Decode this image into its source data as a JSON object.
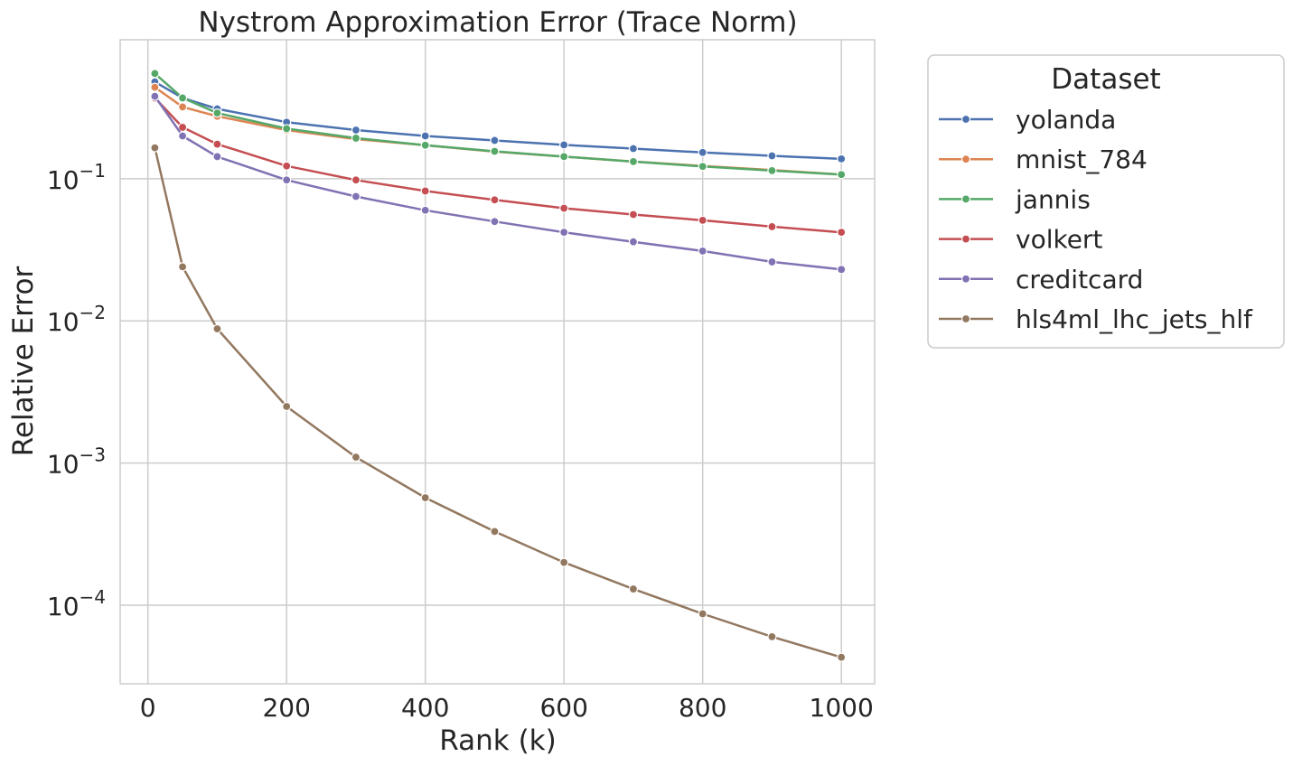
{
  "chart_data": {
    "type": "line",
    "title": "Nystrom Approximation Error (Trace Norm)",
    "xlabel": "Rank (k)",
    "ylabel": "Relative Error",
    "x_scale": "linear",
    "y_scale": "log",
    "xlim": [
      -40,
      1048
    ],
    "ylim": [
      2.8e-05,
      0.95
    ],
    "x_ticks": [
      0,
      200,
      400,
      600,
      800,
      1000
    ],
    "x_tick_labels": [
      "0",
      "200",
      "400",
      "600",
      "800",
      "1000"
    ],
    "y_ticks": [
      0.0001,
      0.001,
      0.01,
      0.1
    ],
    "y_tick_labels": [
      {
        "base": "10",
        "exp": "−4"
      },
      {
        "base": "10",
        "exp": "−3"
      },
      {
        "base": "10",
        "exp": "−2"
      },
      {
        "base": "10",
        "exp": "−1"
      }
    ],
    "grid": true,
    "legend": {
      "title": "Dataset",
      "placement": "outside-top-right"
    },
    "x": [
      10,
      50,
      100,
      200,
      300,
      400,
      500,
      600,
      700,
      800,
      900,
      1000
    ],
    "series": [
      {
        "name": "yolanda",
        "color": "#4c72b0",
        "values": [
          0.48,
          0.37,
          0.31,
          0.25,
          0.22,
          0.2,
          0.186,
          0.173,
          0.163,
          0.153,
          0.145,
          0.138
        ]
      },
      {
        "name": "mnist_784",
        "color": "#dd8452",
        "values": [
          0.44,
          0.32,
          0.275,
          0.22,
          0.19,
          0.172,
          0.155,
          0.143,
          0.132,
          0.123,
          0.115,
          0.107
        ]
      },
      {
        "name": "jannis",
        "color": "#55a868",
        "values": [
          0.55,
          0.37,
          0.29,
          0.225,
          0.193,
          0.172,
          0.156,
          0.143,
          0.132,
          0.122,
          0.114,
          0.107
        ]
      },
      {
        "name": "volkert",
        "color": "#c44e52",
        "values": [
          0.37,
          0.23,
          0.175,
          0.123,
          0.098,
          0.082,
          0.071,
          0.062,
          0.056,
          0.051,
          0.046,
          0.042
        ]
      },
      {
        "name": "creditcard",
        "color": "#8172b3",
        "values": [
          0.38,
          0.2,
          0.143,
          0.098,
          0.075,
          0.06,
          0.05,
          0.042,
          0.036,
          0.031,
          0.026,
          0.023
        ]
      },
      {
        "name": "hls4ml_lhc_jets_hlf",
        "color": "#937860",
        "values": [
          0.165,
          0.024,
          0.0088,
          0.0025,
          0.0011,
          0.00057,
          0.00033,
          0.0002,
          0.00013,
          8.7e-05,
          6e-05,
          4.3e-05
        ]
      }
    ]
  }
}
